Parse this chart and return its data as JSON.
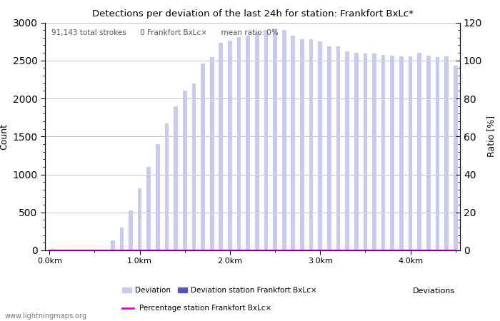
{
  "title": "Detections per deviation of the last 24h for station: Frankfort BxLc*",
  "xlabel": "Deviations",
  "ylabel_left": "Count",
  "ylabel_right": "Ratio [%]",
  "annotation": "91,143 total strokes      0 Frankfort BxLc×      mean ratio: 0%",
  "watermark": "www.lightningmaps.org",
  "ylim_left": [
    0,
    3000
  ],
  "ylim_right": [
    0,
    120
  ],
  "yticks_left": [
    0,
    500,
    1000,
    1500,
    2000,
    2500,
    3000
  ],
  "yticks_right": [
    0,
    20,
    40,
    60,
    80,
    100,
    120
  ],
  "bar_color_light": "#c8caee",
  "bar_color_dark": "#5555bb",
  "line_color": "#dd00dd",
  "xtick_labels": [
    "0.0km",
    "1.0km",
    "2.0km",
    "3.0km",
    "4.0km"
  ],
  "xtick_positions": [
    0,
    10,
    20,
    30,
    40
  ],
  "bar_values": [
    0,
    0,
    0,
    0,
    5,
    5,
    5,
    130,
    300,
    530,
    820,
    1100,
    1400,
    1670,
    1900,
    2100,
    2200,
    2460,
    2540,
    2730,
    2760,
    2810,
    2830,
    2870,
    2900,
    2920,
    2900,
    2830,
    2780,
    2780,
    2750,
    2690,
    2690,
    2620,
    2600,
    2590,
    2590,
    2570,
    2560,
    2550,
    2550,
    2600,
    2560,
    2540,
    2550,
    2430
  ],
  "station_bar_values": [
    0,
    0,
    0,
    0,
    0,
    0,
    0,
    0,
    0,
    0,
    0,
    0,
    0,
    0,
    0,
    0,
    0,
    0,
    0,
    0,
    0,
    0,
    0,
    0,
    0,
    0,
    0,
    0,
    0,
    0,
    0,
    0,
    0,
    0,
    0,
    0,
    0,
    0,
    0,
    0,
    0,
    0,
    0,
    0,
    0,
    0
  ],
  "percentage_values": [
    0,
    0,
    0,
    0,
    0,
    0,
    0,
    0,
    0,
    0,
    0,
    0,
    0,
    0,
    0,
    0,
    0,
    0,
    0,
    0,
    0,
    0,
    0,
    0,
    0,
    0,
    0,
    0,
    0,
    0,
    0,
    0,
    0,
    0,
    0,
    0,
    0,
    0,
    0,
    0,
    0,
    0,
    0,
    0,
    0,
    0
  ],
  "legend_label_light": "Deviation",
  "legend_label_dark": "Deviation station Frankfort BxLc×",
  "legend_label_line": "Percentage station Frankfort BxLc×"
}
